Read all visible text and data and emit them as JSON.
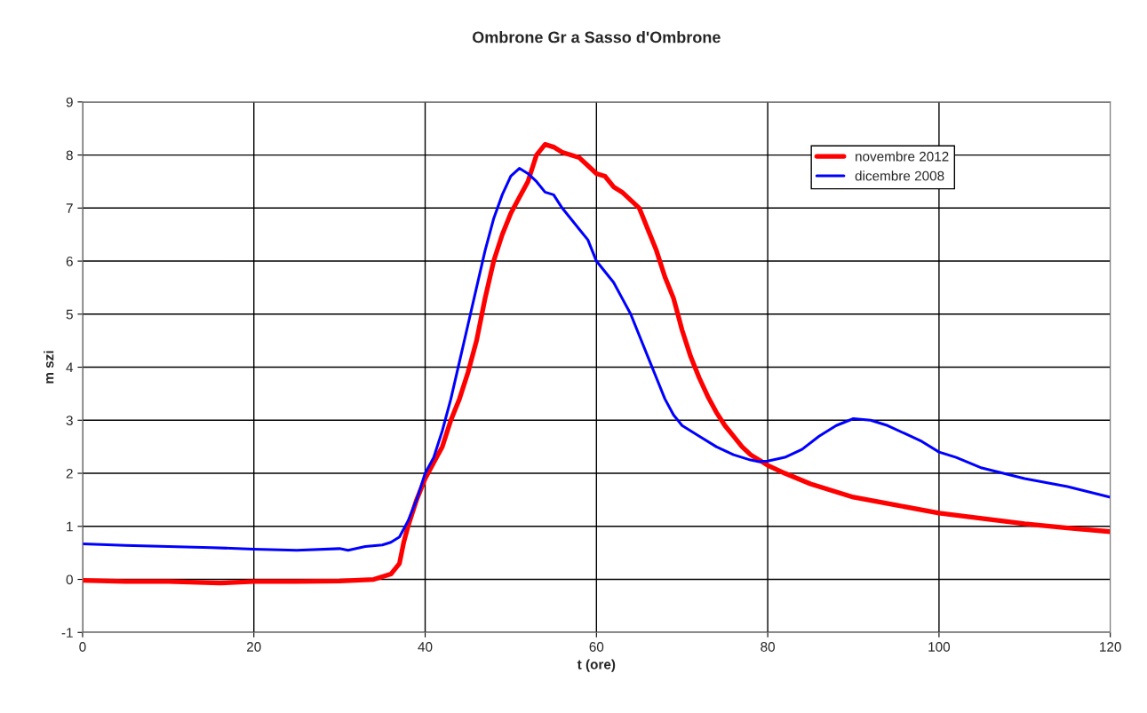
{
  "chart_data": {
    "type": "line",
    "title": "Ombrone Gr a Sasso d'Ombrone",
    "xlabel": "t (ore)",
    "ylabel": "m szi",
    "xlim": [
      0,
      120
    ],
    "xticks": [
      0,
      20,
      40,
      60,
      80,
      100,
      120
    ],
    "ylim": [
      -1,
      9
    ],
    "yticks": [
      -1,
      0,
      1,
      2,
      3,
      4,
      5,
      6,
      7,
      8,
      9
    ],
    "grid": true,
    "legend": "top right",
    "marker": "none",
    "line_style": "solid",
    "series": [
      {
        "name": "novembre 2012",
        "color": "#ff0000",
        "x": [
          0,
          5,
          10,
          16,
          20,
          25,
          30,
          34,
          36,
          37,
          37.5,
          38,
          39,
          40,
          41,
          42,
          43,
          44,
          45,
          46,
          47,
          48,
          49,
          50,
          51,
          52,
          53,
          54,
          55,
          56,
          57,
          58,
          59,
          60,
          61,
          62,
          63,
          64,
          65,
          66,
          67,
          68,
          69,
          70,
          71,
          72,
          73,
          74,
          75,
          76,
          77,
          78,
          80,
          82,
          85,
          90,
          95,
          100,
          105,
          110,
          115,
          120
        ],
        "values": [
          -0.02,
          -0.04,
          -0.04,
          -0.07,
          -0.04,
          -0.04,
          -0.03,
          0.0,
          0.1,
          0.3,
          0.7,
          1.0,
          1.5,
          1.9,
          2.2,
          2.5,
          3.0,
          3.4,
          3.9,
          4.5,
          5.3,
          6.0,
          6.5,
          6.9,
          7.2,
          7.5,
          8.0,
          8.2,
          8.15,
          8.05,
          8.0,
          7.95,
          7.8,
          7.65,
          7.6,
          7.4,
          7.3,
          7.15,
          7.0,
          6.6,
          6.2,
          5.7,
          5.3,
          4.7,
          4.2,
          3.8,
          3.45,
          3.15,
          2.9,
          2.7,
          2.5,
          2.35,
          2.15,
          2.0,
          1.8,
          1.55,
          1.4,
          1.25,
          1.15,
          1.05,
          0.97,
          0.9
        ]
      },
      {
        "name": "dicembre 2008",
        "color": "#0000ff",
        "x": [
          0,
          5,
          10,
          15,
          20,
          25,
          30,
          31,
          33,
          35,
          36,
          37,
          38,
          39,
          40,
          41,
          42,
          43,
          44,
          45,
          46,
          47,
          48,
          49,
          50,
          51,
          52,
          53,
          54,
          55,
          56,
          57,
          58,
          59,
          60,
          61,
          62,
          63,
          64,
          65,
          66,
          67,
          68,
          69,
          70,
          72,
          74,
          76,
          78,
          79,
          80,
          82,
          84,
          86,
          88,
          90,
          92,
          94,
          96,
          98,
          100,
          102,
          105,
          110,
          115,
          120
        ],
        "values": [
          0.67,
          0.64,
          0.62,
          0.6,
          0.57,
          0.55,
          0.58,
          0.55,
          0.62,
          0.65,
          0.7,
          0.8,
          1.1,
          1.5,
          2.0,
          2.3,
          2.8,
          3.4,
          4.1,
          4.8,
          5.5,
          6.2,
          6.8,
          7.25,
          7.6,
          7.75,
          7.65,
          7.5,
          7.3,
          7.25,
          7.0,
          6.8,
          6.6,
          6.4,
          6.0,
          5.8,
          5.6,
          5.3,
          5.0,
          4.6,
          4.2,
          3.8,
          3.4,
          3.1,
          2.9,
          2.7,
          2.5,
          2.35,
          2.25,
          2.22,
          2.23,
          2.3,
          2.45,
          2.7,
          2.9,
          3.03,
          3.0,
          2.9,
          2.75,
          2.6,
          2.4,
          2.3,
          2.1,
          1.9,
          1.75,
          1.55
        ]
      }
    ]
  }
}
